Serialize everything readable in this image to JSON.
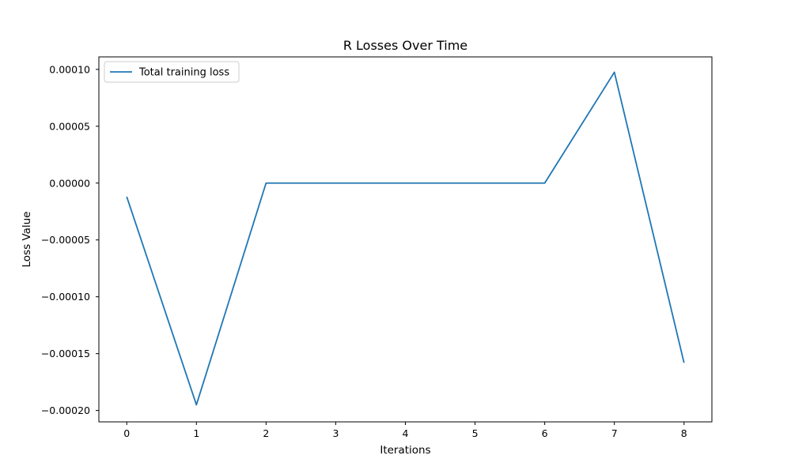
{
  "chart_data": {
    "type": "line",
    "title": "R Losses Over Time",
    "xlabel": "Iterations",
    "ylabel": "Loss Value",
    "x": [
      0,
      1,
      2,
      3,
      4,
      5,
      6,
      7,
      8
    ],
    "series": [
      {
        "name": "Total training loss",
        "values": [
          -1.2e-05,
          -0.000195,
          0.0,
          0.0,
          0.0,
          0.0,
          0.0,
          9.75e-05,
          -0.000158
        ],
        "color": "#1f77b4"
      }
    ],
    "xticks": [
      0,
      1,
      2,
      3,
      4,
      5,
      6,
      7,
      8
    ],
    "yticks": [
      -0.0002,
      -0.00015,
      -0.0001,
      -5e-05,
      0.0,
      5e-05,
      0.0001
    ],
    "ytick_labels": [
      "−0.00020",
      "−0.00015",
      "−0.00010",
      "−0.00005",
      "0.00000",
      "0.00005",
      "0.00010"
    ],
    "xlim": [
      -0.4,
      8.4
    ],
    "ylim": [
      -0.00021,
      0.000111
    ],
    "grid": false,
    "legend_position": "top-left"
  }
}
